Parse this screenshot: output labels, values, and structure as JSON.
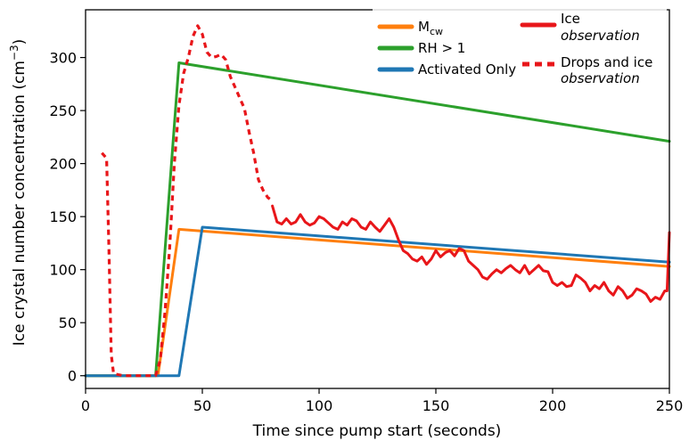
{
  "chart_data": {
    "type": "line",
    "xlabel": "Time since pump start (seconds)",
    "ylabel": "Ice crystal number concentration (cm",
    "ylabel_sup": "−3",
    "ylabel_end": ")",
    "xlim": [
      0,
      250
    ],
    "ylim": [
      -12,
      345
    ],
    "xticks": [
      0,
      50,
      100,
      150,
      200,
      250
    ],
    "yticks": [
      0,
      50,
      100,
      150,
      200,
      250,
      300
    ],
    "grid": false,
    "legend": [
      {
        "label": "M",
        "sub": "cw",
        "color": "#ff7f0e",
        "style": "solid"
      },
      {
        "label": "RH > 1",
        "color": "#2ca02c",
        "style": "solid"
      },
      {
        "label": "Activated Only",
        "color": "#1f77b4",
        "style": "solid"
      },
      {
        "label": "Ice",
        "label2": "observation",
        "color": "#e8161a",
        "style": "solid"
      },
      {
        "label": "Drops and ice",
        "label2": "observation",
        "color": "#e8161a",
        "style": "dashed"
      }
    ],
    "series": [
      {
        "name": "M",
        "color": "#ff7f0e",
        "style": "solid",
        "x": [
          0,
          31,
          40,
          250
        ],
        "y": [
          0,
          0,
          138,
          103
        ]
      },
      {
        "name": "RH > 1",
        "color": "#2ca02c",
        "style": "solid",
        "x": [
          0,
          30,
          40,
          250
        ],
        "y": [
          0,
          0,
          295,
          221
        ]
      },
      {
        "name": "Activated Only",
        "color": "#1f77b4",
        "style": "solid",
        "x": [
          0,
          40,
          50,
          250
        ],
        "y": [
          0,
          0,
          140,
          107
        ]
      },
      {
        "name": "Drops and ice",
        "color": "#e8161a",
        "style": "dashed",
        "x": [
          7,
          9,
          10,
          11,
          12,
          14,
          16,
          18,
          20,
          23,
          25,
          28,
          30,
          32,
          34,
          36,
          38,
          40,
          42,
          44,
          46,
          48,
          50,
          52,
          54,
          56,
          58,
          60,
          62,
          64,
          66,
          68,
          70,
          72,
          74,
          76,
          78,
          80
        ],
        "y": [
          210,
          205,
          120,
          20,
          2,
          1,
          0,
          0,
          0,
          0,
          0,
          0,
          0,
          15,
          60,
          120,
          200,
          255,
          285,
          300,
          320,
          330,
          322,
          305,
          300,
          301,
          303,
          298,
          282,
          272,
          262,
          252,
          230,
          210,
          185,
          175,
          168,
          165
        ]
      },
      {
        "name": "Ice",
        "color": "#e8161a",
        "style": "solid",
        "x": [
          80,
          82,
          84,
          86,
          88,
          90,
          92,
          94,
          96,
          98,
          100,
          102,
          104,
          106,
          108,
          110,
          112,
          114,
          116,
          118,
          120,
          122,
          124,
          126,
          128,
          130,
          132,
          134,
          136,
          138,
          140,
          142,
          144,
          146,
          148,
          150,
          152,
          154,
          156,
          158,
          160,
          162,
          164,
          166,
          168,
          170,
          172,
          174,
          176,
          178,
          180,
          182,
          184,
          186,
          188,
          190,
          192,
          194,
          196,
          198,
          200,
          202,
          204,
          206,
          208,
          210,
          212,
          214,
          216,
          218,
          220,
          222,
          224,
          226,
          228,
          230,
          232,
          234,
          236,
          238,
          240,
          242,
          244,
          246,
          248,
          249,
          250
        ],
        "y": [
          160,
          145,
          143,
          148,
          143,
          145,
          152,
          145,
          142,
          144,
          150,
          148,
          144,
          140,
          138,
          145,
          142,
          148,
          146,
          140,
          138,
          145,
          140,
          136,
          142,
          148,
          140,
          128,
          118,
          115,
          110,
          108,
          112,
          105,
          110,
          118,
          112,
          116,
          118,
          113,
          120,
          118,
          108,
          104,
          100,
          93,
          91,
          96,
          100,
          97,
          101,
          104,
          100,
          97,
          104,
          96,
          100,
          104,
          99,
          98,
          88,
          85,
          88,
          84,
          85,
          95,
          92,
          88,
          80,
          85,
          82,
          88,
          80,
          76,
          84,
          80,
          73,
          76,
          82,
          80,
          77,
          70,
          74,
          72,
          80,
          80,
          135
        ]
      }
    ]
  }
}
